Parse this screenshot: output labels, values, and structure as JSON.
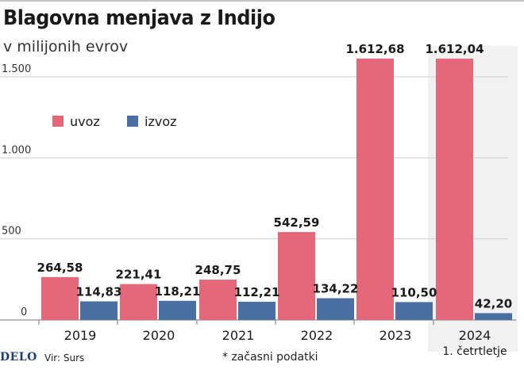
{
  "title": "Blagovna menjava z Indijo",
  "subtitle": "v milijonih evrov",
  "footer": {
    "brand": "DELO",
    "source": "Vir: Surs",
    "note": "* začasni podatki"
  },
  "colors": {
    "uvoz": "#e4687a",
    "izvoz": "#4a6fa3",
    "highlight": "#f1f1f1",
    "grid": "#cfcfcf"
  },
  "chart_data": {
    "type": "bar",
    "categories": [
      "2019",
      "2020",
      "2021",
      "2022",
      "2023",
      "2024"
    ],
    "category_sublabels": [
      "",
      "",
      "",
      "",
      "",
      "1. četrtletje"
    ],
    "highlighted_category": "2024",
    "series": [
      {
        "name": "uvoz",
        "values": [
          264.58,
          221.41,
          248.75,
          542.59,
          1612.68,
          1612.04
        ],
        "labels": [
          "264,58",
          "221,41",
          "248,75",
          "542,59",
          "1.612,68",
          "1.612,04"
        ]
      },
      {
        "name": "izvoz",
        "values": [
          114.83,
          118.21,
          112.21,
          134.22,
          110.5,
          42.2
        ],
        "labels": [
          "114,83",
          "118,21",
          "112,21",
          "134,22",
          "110,50",
          "42,20"
        ]
      }
    ],
    "yticks": [
      0,
      500,
      1000,
      1500
    ],
    "ytick_labels": [
      "0",
      "500",
      "1.000",
      "1.500"
    ],
    "ylim": [
      0,
      1700
    ],
    "grid": true,
    "legend_position": "top-left"
  }
}
